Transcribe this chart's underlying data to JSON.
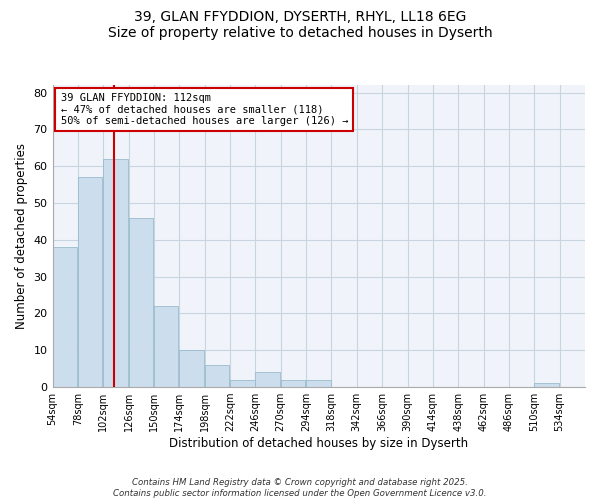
{
  "title": "39, GLAN FFYDDION, DYSERTH, RHYL, LL18 6EG",
  "subtitle": "Size of property relative to detached houses in Dyserth",
  "xlabel": "Distribution of detached houses by size in Dyserth",
  "ylabel": "Number of detached properties",
  "bar_color": "#ccdded",
  "bar_edge_color": "#99bbcc",
  "background_color": "#ffffff",
  "plot_bg_color": "#f0f4fa",
  "grid_color": "#c8d4e0",
  "bins": [
    54,
    78,
    102,
    126,
    150,
    174,
    198,
    222,
    246,
    270,
    294,
    318,
    342,
    366,
    390,
    414,
    438,
    462,
    486,
    510,
    534
  ],
  "values": [
    38,
    57,
    62,
    46,
    22,
    10,
    6,
    2,
    4,
    2,
    2,
    0,
    0,
    0,
    0,
    0,
    0,
    0,
    0,
    1,
    0
  ],
  "tick_labels": [
    "54sqm",
    "78sqm",
    "102sqm",
    "126sqm",
    "150sqm",
    "174sqm",
    "198sqm",
    "222sqm",
    "246sqm",
    "270sqm",
    "294sqm",
    "318sqm",
    "342sqm",
    "366sqm",
    "390sqm",
    "414sqm",
    "438sqm",
    "462sqm",
    "486sqm",
    "510sqm",
    "534sqm"
  ],
  "vline_x": 112,
  "vline_color": "#cc0000",
  "annotation_line1": "39 GLAN FFYDDION: 112sqm",
  "annotation_line2": "← 47% of detached houses are smaller (118)",
  "annotation_line3": "50% of semi-detached houses are larger (126) →",
  "footer1": "Contains HM Land Registry data © Crown copyright and database right 2025.",
  "footer2": "Contains public sector information licensed under the Open Government Licence v3.0.",
  "ylim": [
    0,
    82
  ],
  "yticks": [
    0,
    10,
    20,
    30,
    40,
    50,
    60,
    70,
    80
  ],
  "figsize": [
    6.0,
    5.0
  ],
  "dpi": 100
}
